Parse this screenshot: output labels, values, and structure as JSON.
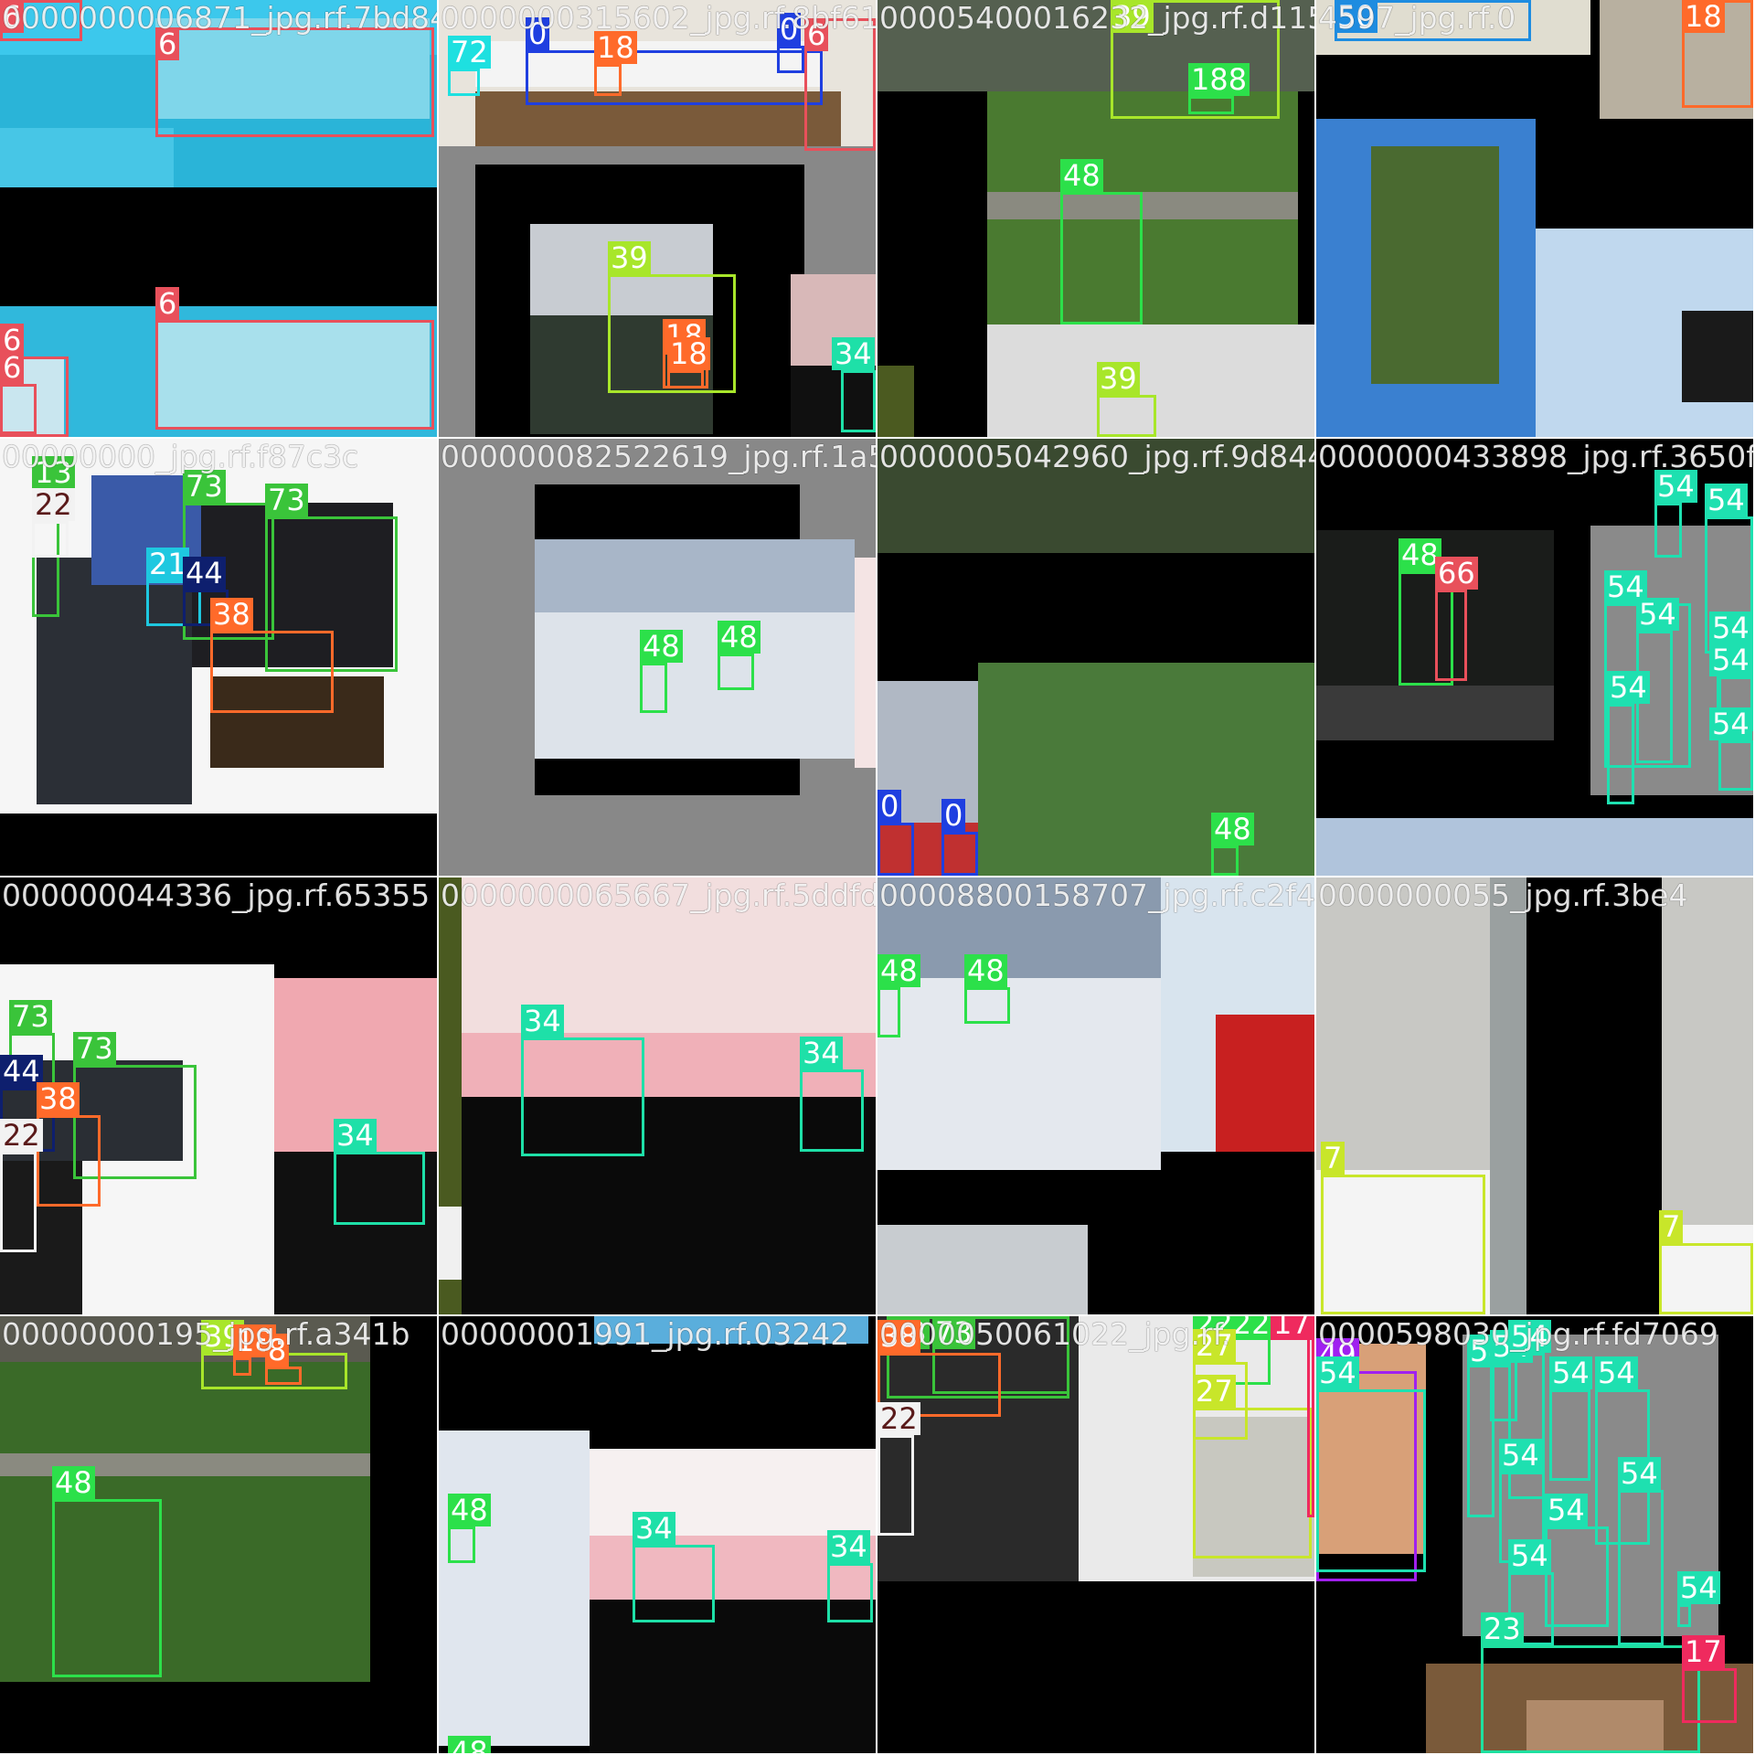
{
  "mosaic": {
    "label_colors": {
      "0": "#1f3fe0",
      "6": "#e8505b",
      "7": "#c8e62a",
      "8": "#ff6a2a",
      "13": "#3ac43a",
      "17": "#ef2a5e",
      "18": "#ff6a2a",
      "21": "#1ec8e0",
      "22": "#f2f2f2",
      "23": "#1ee0a0",
      "27": "#c8e62a",
      "34": "#1ee0a8",
      "38": "#ff6a2a",
      "39": "#a8e62a",
      "44": "#0e1f6e",
      "48": "#2ce04a",
      "49": "#a020f0",
      "50": "#1e8ce0",
      "54": "#1ee0b0",
      "66": "#e8505b",
      "72": "#1ee0e0",
      "73": "#3ac43a"
    },
    "tiles": [
      {
        "title": "0000000006871_jpg.rf.7bd84",
        "labels": [
          "6",
          "6",
          "6",
          "6",
          "6"
        ]
      },
      {
        "title": "0000000315602_jpg.rf.8bf61",
        "labels": [
          "0",
          "72",
          "18",
          "0",
          "6",
          "39",
          "18",
          "18",
          "34"
        ]
      },
      {
        "title": "00005400016232_jpg.rf.d1158",
        "labels": [
          "39",
          "188",
          "48",
          "39"
        ]
      },
      {
        "title": "4597_jpg.rf.0",
        "labels": [
          "50",
          "18"
        ]
      },
      {
        "title": "00000000_jpg.rf.f87c3c",
        "labels": [
          "13",
          "22",
          "73",
          "73",
          "21",
          "44",
          "38"
        ]
      },
      {
        "title": "000000082522619_jpg.rf.1a5a3",
        "labels": [
          "48",
          "48"
        ]
      },
      {
        "title": "0000005042960_jpg.rf.9d844",
        "labels": [
          "0",
          "0",
          "48"
        ]
      },
      {
        "title": "0000000433898_jpg.rf.3650f7",
        "labels": [
          "48",
          "66",
          "54",
          "54",
          "54",
          "54",
          "54",
          "54",
          "54",
          "54"
        ]
      },
      {
        "title": "000000044336_jpg.rf.65355",
        "labels": [
          "73",
          "73",
          "44",
          "38",
          "22",
          "34"
        ]
      },
      {
        "title": "0000000065667_jpg.rf.5ddfdb",
        "labels": [
          "34",
          "34"
        ]
      },
      {
        "title": "00008800158707_jpg.rf.c2f4f2",
        "labels": [
          "48",
          "48"
        ]
      },
      {
        "title": "0000000055_jpg.rf.3be4",
        "labels": [
          "7",
          "7"
        ]
      },
      {
        "title": "00000000195_jpg.rf.a341b",
        "labels": [
          "39",
          "18",
          "8",
          "48"
        ]
      },
      {
        "title": "00000001991_jpg.rf.03242",
        "labels": [
          "48",
          "48",
          "34",
          "34"
        ]
      },
      {
        "title": "0000050061022_jpg.rf.",
        "labels": [
          "73",
          "73",
          "38",
          "22",
          "2222",
          "27",
          "27",
          "17"
        ]
      },
      {
        "title": "0000598030_jpg.rf.fd7069",
        "labels": [
          "49",
          "54",
          "54",
          "54",
          "54",
          "54",
          "54",
          "54",
          "54",
          "54",
          "54",
          "54",
          "23",
          "17"
        ]
      }
    ]
  }
}
